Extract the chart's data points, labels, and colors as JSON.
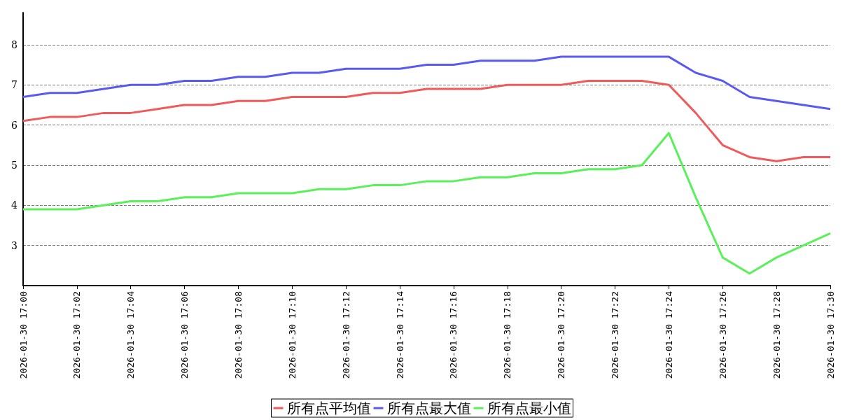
{
  "chart_data": {
    "type": "line",
    "categories": [
      "2026-01-30 17:00",
      null,
      "2026-01-30 17:02",
      null,
      "2026-01-30 17:04",
      null,
      "2026-01-30 17:06",
      null,
      "2026-01-30 17:08",
      null,
      "2026-01-30 17:10",
      null,
      "2026-01-30 17:12",
      null,
      "2026-01-30 17:14",
      null,
      "2026-01-30 17:16",
      null,
      "2026-01-30 17:18",
      null,
      "2026-01-30 17:20",
      null,
      "2026-01-30 17:22",
      null,
      "2026-01-30 17:24",
      null,
      "2026-01-30 17:26",
      null,
      "2026-01-30 17:28",
      null,
      "2026-01-30 17:30"
    ],
    "series": [
      {
        "name": "所有点平均值",
        "color": "#f05a5a",
        "values": [
          6.1,
          6.2,
          6.2,
          6.3,
          6.3,
          6.4,
          6.5,
          6.5,
          6.6,
          6.6,
          6.7,
          6.7,
          6.7,
          6.8,
          6.8,
          6.9,
          6.9,
          6.9,
          7.0,
          7.0,
          7.0,
          7.1,
          7.1,
          7.1,
          7.0,
          6.3,
          5.5,
          5.2,
          5.1,
          5.2,
          5.2
        ]
      },
      {
        "name": "所有点最大值",
        "color": "#5a5af0",
        "values": [
          6.7,
          6.8,
          6.8,
          6.9,
          7.0,
          7.0,
          7.1,
          7.1,
          7.2,
          7.2,
          7.3,
          7.3,
          7.4,
          7.4,
          7.4,
          7.5,
          7.5,
          7.6,
          7.6,
          7.6,
          7.7,
          7.7,
          7.7,
          7.7,
          7.7,
          7.3,
          7.1,
          6.7,
          6.6,
          6.5,
          6.4
        ]
      },
      {
        "name": "所有点最小值",
        "color": "#5af05a",
        "values": [
          3.9,
          3.9,
          3.9,
          4.0,
          4.1,
          4.1,
          4.2,
          4.2,
          4.3,
          4.3,
          4.3,
          4.4,
          4.4,
          4.5,
          4.5,
          4.6,
          4.6,
          4.7,
          4.7,
          4.8,
          4.8,
          4.9,
          4.9,
          5.0,
          5.8,
          4.2,
          2.7,
          2.3,
          2.7,
          3.0,
          3.3
        ]
      }
    ],
    "ylim": [
      2,
      8.8
    ],
    "yticks": [
      3,
      4,
      5,
      6,
      7,
      8
    ],
    "grid": "y",
    "legend": "bottom",
    "marker": "none",
    "line_style": "solid"
  }
}
